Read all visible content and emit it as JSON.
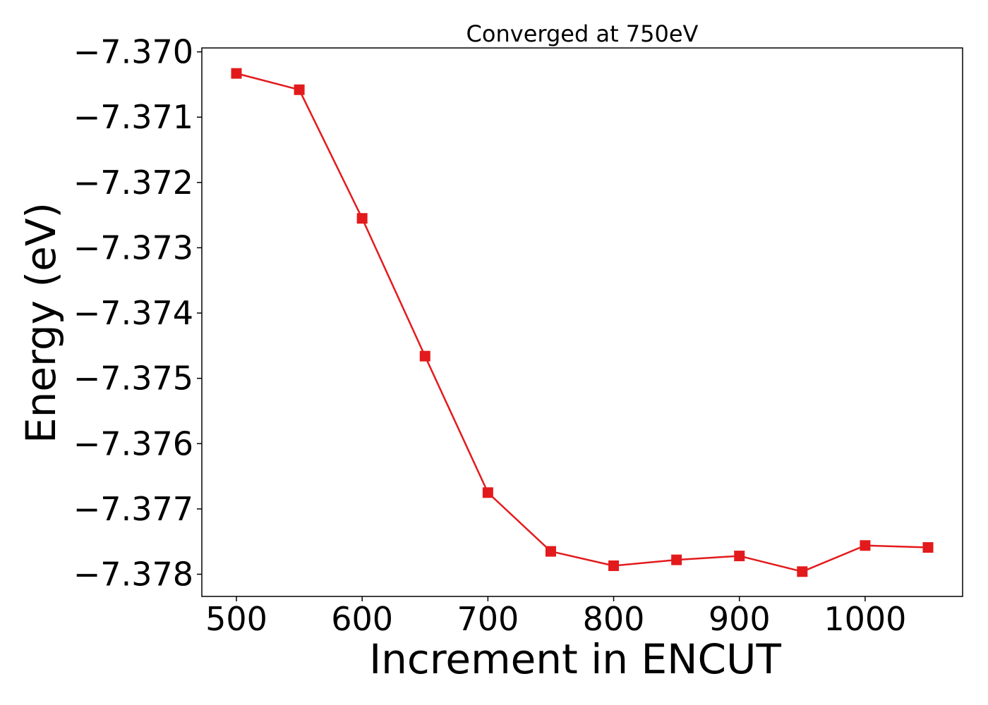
{
  "chart_data": {
    "type": "line",
    "title": "Converged at 750eV",
    "xlabel": "Increment in ENCUT",
    "ylabel": "Energy (eV)",
    "x": [
      500,
      550,
      600,
      650,
      700,
      750,
      800,
      850,
      900,
      950,
      1000,
      1050
    ],
    "series": [
      {
        "values": [
          -7.37033,
          -7.37058,
          -7.37255,
          -7.37466,
          -7.37675,
          -7.37765,
          -7.37787,
          -7.37778,
          -7.37772,
          -7.37796,
          -7.37756,
          -7.37759
        ],
        "color": "#e31a1c",
        "marker": "square"
      }
    ],
    "xticks": [
      500,
      600,
      700,
      800,
      900,
      1000
    ],
    "xtick_labels": [
      "500",
      "600",
      "700",
      "800",
      "900",
      "1000"
    ],
    "yticks": [
      -7.37,
      -7.371,
      -7.372,
      -7.373,
      -7.374,
      -7.375,
      -7.376,
      -7.377,
      -7.378
    ],
    "ytick_labels": [
      "−7.370",
      "−7.371",
      "−7.372",
      "−7.373",
      "−7.374",
      "−7.375",
      "−7.376",
      "−7.377",
      "−7.378"
    ],
    "xlim": [
      472.5,
      1077.5
    ],
    "ylim": [
      -7.37834,
      -7.36994
    ],
    "grid": false,
    "legend": false
  }
}
